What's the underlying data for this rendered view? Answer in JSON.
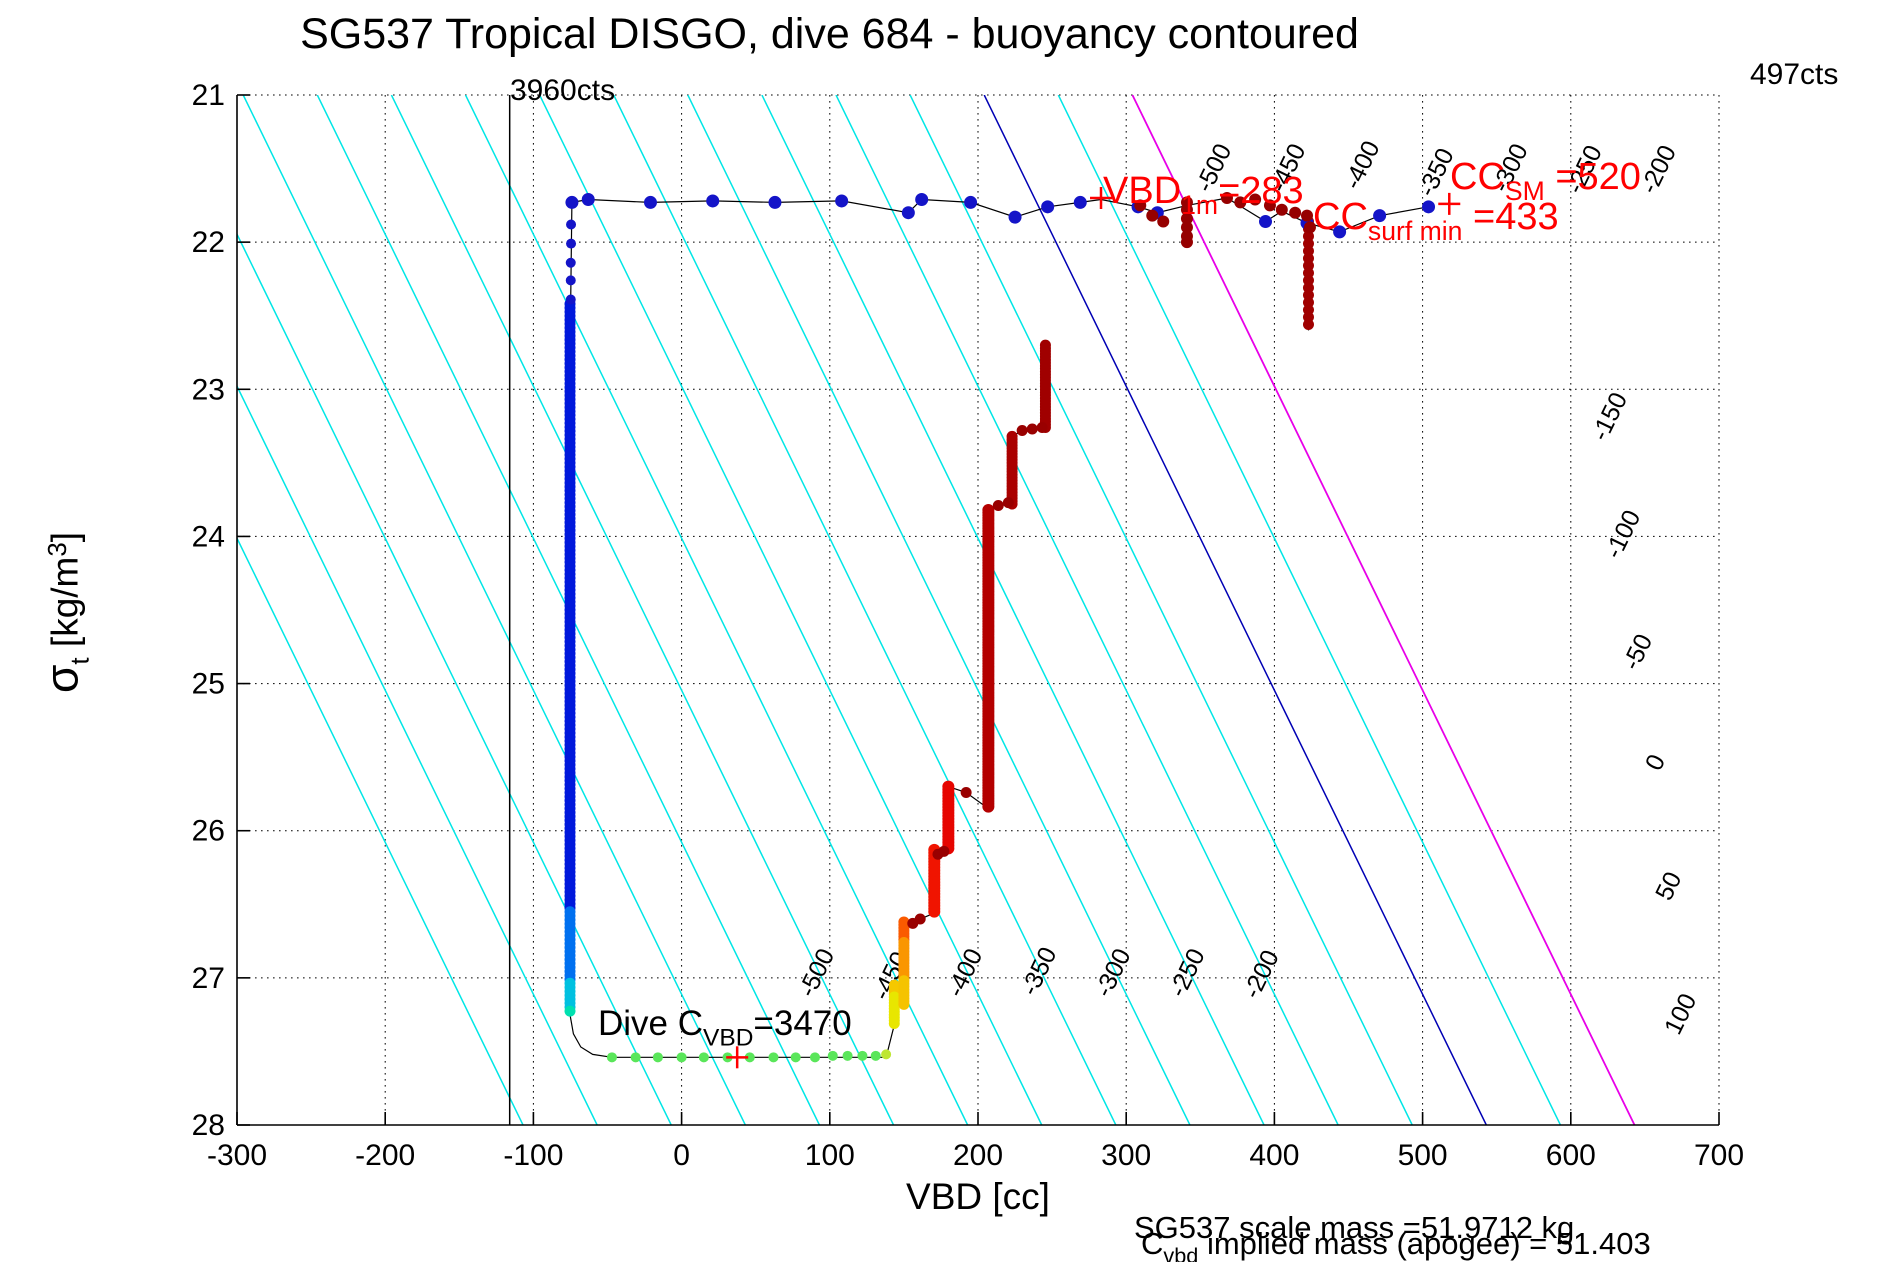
{
  "title": "SG537 Tropical DISGO, dive 684 - buoyancy contoured",
  "annotations": {
    "counts_left": "3960cts",
    "counts_right": "497cts",
    "vbd_1m": {
      "pre": "VBD",
      "sub": "1m",
      "post": "=283"
    },
    "cc_surf": {
      "pre": "CC",
      "sub": "surf min",
      "post": "=433"
    },
    "cc_sm": {
      "pre": "CC",
      "sub": "SM",
      "post": "=520"
    },
    "dive_c": {
      "pre": "Dive C",
      "sub": "VBD",
      "post": "=3470"
    },
    "scale_mass": "SG537 scale mass =51.9712 kg",
    "implied_mass": {
      "pre": "C",
      "sub": "vbd",
      "post": " implied mass (apogee) = 51.403"
    }
  },
  "axes": {
    "x": {
      "label": "VBD [cc]",
      "min": -300,
      "max": 700,
      "ticks": [
        -300,
        -200,
        -100,
        0,
        100,
        200,
        300,
        400,
        500,
        600,
        700
      ],
      "grid_ticks": [
        -200,
        -100,
        0,
        100,
        200,
        300,
        400,
        500,
        600,
        700
      ]
    },
    "y": {
      "sigma": "σ",
      "sigma_sub": "t",
      "units_pre": " [kg/m",
      "units_sup": "3",
      "units_post": "]",
      "min": 21,
      "max": 28,
      "ticks": [
        21,
        22,
        23,
        24,
        25,
        26,
        27,
        28
      ],
      "grid_ticks": [
        21,
        22,
        23,
        24,
        25,
        26,
        27
      ]
    }
  },
  "chart_data": {
    "type": "scatter",
    "xlabel": "VBD [cc]",
    "ylabel": "sigma_t [kg/m3]",
    "xlim": [
      -300,
      700
    ],
    "ylim": [
      21,
      28
    ],
    "y_inverted": true,
    "grid": true,
    "reference_line_vbd": -116,
    "contours": {
      "comment": "buoyancy contour value v satisfies v = vbd - 543 + 48.4*(28-sigma)",
      "vbd_offset_at_sigma28": 543,
      "dvbd_dsigma": -48.4,
      "step": 50,
      "levels": [
        -650,
        -600,
        -550,
        -500,
        -450,
        -400,
        -350,
        -300,
        -250,
        -200,
        -150,
        -100,
        -50,
        0,
        50,
        100
      ],
      "default_color": "#00e6e6",
      "special_colors": {
        "0": "#0000b4",
        "100": "#e800e8"
      },
      "label_rotation_deg": -64,
      "labels": [
        {
          "v": -500,
          "vbd": 364,
          "sigma": 21.52
        },
        {
          "v": -450,
          "vbd": 414,
          "sigma": 21.52
        },
        {
          "v": -400,
          "vbd": 464,
          "sigma": 21.5
        },
        {
          "v": -350,
          "vbd": 514,
          "sigma": 21.55
        },
        {
          "v": -300,
          "vbd": 564,
          "sigma": 21.52
        },
        {
          "v": -250,
          "vbd": 614,
          "sigma": 21.53
        },
        {
          "v": -200,
          "vbd": 664,
          "sigma": 21.53
        },
        {
          "v": -150,
          "vbd": 631,
          "sigma": 23.21
        },
        {
          "v": -100,
          "vbd": 640,
          "sigma": 24.01
        },
        {
          "v": -50,
          "vbd": 650,
          "sigma": 24.81
        },
        {
          "v": 0,
          "vbd": 662,
          "sigma": 25.56
        },
        {
          "v": 50,
          "vbd": 671,
          "sigma": 26.4
        },
        {
          "v": 100,
          "vbd": 679,
          "sigma": 27.27
        },
        {
          "v": -500,
          "vbd": 96,
          "sigma": 26.99
        },
        {
          "v": -450,
          "vbd": 146,
          "sigma": 27.01
        },
        {
          "v": -400,
          "vbd": 196,
          "sigma": 26.99
        },
        {
          "v": -350,
          "vbd": 246,
          "sigma": 26.98
        },
        {
          "v": -300,
          "vbd": 296,
          "sigma": 26.99
        },
        {
          "v": -250,
          "vbd": 346,
          "sigma": 26.99
        },
        {
          "v": -200,
          "vbd": 396,
          "sigma": 27.0
        }
      ]
    },
    "black_paths": [
      [
        [
          -74,
          21.73
        ],
        [
          -63,
          21.71
        ],
        [
          -21,
          21.73
        ],
        [
          21,
          21.72
        ],
        [
          63,
          21.73
        ],
        [
          108,
          21.72
        ],
        [
          153,
          21.8
        ],
        [
          162,
          21.71
        ],
        [
          195,
          21.73
        ],
        [
          225,
          21.83
        ],
        [
          247,
          21.76
        ],
        [
          269,
          21.73
        ],
        [
          283,
          21.71
        ],
        [
          308,
          21.76
        ],
        [
          321,
          21.8
        ],
        [
          341,
          21.75
        ],
        [
          368,
          21.7
        ],
        [
          394,
          21.86
        ],
        [
          405,
          21.79
        ],
        [
          422,
          21.87
        ],
        [
          444,
          21.93
        ],
        [
          471,
          21.82
        ],
        [
          504,
          21.76
        ]
      ],
      [
        [
          -74,
          21.73
        ],
        [
          -74.8,
          22.4
        ],
        [
          -75.3,
          26.0
        ],
        [
          -75.3,
          27.25
        ],
        [
          -73,
          27.38
        ],
        [
          -68,
          27.47
        ],
        [
          -60,
          27.52
        ],
        [
          -47,
          27.54
        ],
        [
          138,
          27.54
        ]
      ],
      [
        [
          138,
          27.54
        ],
        [
          143.5,
          27.32
        ],
        [
          143.5,
          27.05
        ],
        [
          150,
          27.18
        ],
        [
          150,
          26.62
        ],
        [
          161,
          26.6
        ],
        [
          170.5,
          26.56
        ],
        [
          170.5,
          26.13
        ],
        [
          180,
          26.13
        ],
        [
          180,
          25.7
        ],
        [
          192,
          25.74
        ],
        [
          207,
          25.85
        ],
        [
          207,
          23.82
        ],
        [
          213.7,
          23.79
        ],
        [
          223,
          23.78
        ],
        [
          223,
          23.32
        ],
        [
          229.8,
          23.28
        ],
        [
          243.3,
          23.26
        ],
        [
          245.5,
          23.27
        ],
        [
          245.5,
          22.7
        ]
      ],
      [
        [
          423,
          21.86
        ],
        [
          423,
          22.6
        ]
      ]
    ],
    "strands": [
      {
        "x": -75.3,
        "s0": 22.42,
        "s1": 27.25,
        "step": 0.027,
        "size": 11,
        "stops": [
          [
            26.55,
            "#0018dc"
          ],
          [
            27.02,
            "#0070f0"
          ],
          [
            27.22,
            "#00c0e0"
          ],
          [
            99,
            "#00e0b0"
          ]
        ]
      },
      {
        "x": 143.5,
        "s0": 27.05,
        "s1": 27.32,
        "step": 0.02,
        "size": 11,
        "stops": [
          [
            27.12,
            "#f5c800"
          ],
          [
            99,
            "#e8e600"
          ]
        ]
      },
      {
        "x": 150,
        "s0": 26.62,
        "s1": 27.18,
        "step": 0.02,
        "size": 11,
        "stops": [
          [
            26.75,
            "#fa5a00"
          ],
          [
            27.0,
            "#fa9600"
          ],
          [
            99,
            "#f5c300"
          ]
        ]
      },
      {
        "x": 170.5,
        "s0": 26.13,
        "s1": 26.56,
        "step": 0.02,
        "size": 12,
        "stops": [
          [
            99,
            "#f01400"
          ]
        ]
      },
      {
        "x": 180,
        "s0": 25.7,
        "s1": 26.13,
        "step": 0.02,
        "size": 12,
        "stops": [
          [
            99,
            "#e60500"
          ]
        ]
      },
      {
        "x": 207,
        "s0": 23.82,
        "s1": 25.85,
        "step": 0.018,
        "size": 12,
        "stops": [
          [
            99,
            "#b40000"
          ]
        ]
      },
      {
        "x": 223,
        "s0": 23.32,
        "s1": 23.78,
        "step": 0.02,
        "size": 11,
        "stops": [
          [
            99,
            "#aa0000"
          ]
        ]
      },
      {
        "x": 245.5,
        "s0": 22.7,
        "s1": 23.27,
        "step": 0.02,
        "size": 11,
        "stops": [
          [
            99,
            "#a00000"
          ]
        ]
      },
      {
        "x": 423,
        "s0": 21.86,
        "s1": 22.6,
        "step": 0.05,
        "size": 11,
        "stops": [
          [
            99,
            "#a00000"
          ]
        ]
      }
    ],
    "series": [
      {
        "name": "surface-points",
        "color": "#1414c8",
        "size": 13,
        "points": [
          [
            -74,
            21.73
          ],
          [
            -63,
            21.71
          ],
          [
            -21,
            21.73
          ],
          [
            21,
            21.72
          ],
          [
            63,
            21.73
          ],
          [
            108,
            21.72
          ],
          [
            153,
            21.8
          ],
          [
            162,
            21.71
          ],
          [
            195,
            21.73
          ],
          [
            225,
            21.83
          ],
          [
            247,
            21.76
          ],
          [
            269,
            21.73
          ],
          [
            308,
            21.76
          ],
          [
            321,
            21.8
          ],
          [
            394,
            21.86
          ],
          [
            422,
            21.87
          ],
          [
            444,
            21.93
          ],
          [
            471,
            21.82
          ],
          [
            504,
            21.76
          ]
        ]
      },
      {
        "name": "descent-sparse",
        "color": "#1414c8",
        "size": 10,
        "points": [
          [
            -74.6,
            21.88
          ],
          [
            -74.6,
            22.01
          ],
          [
            -74.8,
            22.14
          ],
          [
            -74.8,
            22.26
          ],
          [
            -74.8,
            22.39
          ]
        ]
      },
      {
        "name": "bottom-green",
        "color": "#5ae65a",
        "size": 10,
        "points": [
          [
            -47,
            27.54
          ],
          [
            -31,
            27.54
          ],
          [
            -16,
            27.54
          ],
          [
            0,
            27.54
          ],
          [
            15,
            27.54
          ],
          [
            31,
            27.54
          ],
          [
            46,
            27.54
          ],
          [
            62,
            27.54
          ],
          [
            77,
            27.54
          ],
          [
            90,
            27.54
          ],
          [
            102,
            27.53
          ],
          [
            112,
            27.53
          ],
          [
            122,
            27.53
          ],
          [
            131,
            27.53
          ]
        ]
      },
      {
        "name": "bottom-tail",
        "color": "#bee632",
        "size": 10,
        "points": [
          [
            138,
            27.52
          ]
        ]
      },
      {
        "name": "climb-extra",
        "color": "#990000",
        "size": 11,
        "points": [
          [
            161,
            26.6
          ],
          [
            156,
            26.63
          ],
          [
            173,
            26.16
          ],
          [
            177,
            26.14
          ],
          [
            192,
            25.74
          ],
          [
            213.7,
            23.79
          ],
          [
            220.5,
            23.77
          ],
          [
            229.8,
            23.28
          ],
          [
            236.6,
            23.27
          ],
          [
            243.3,
            23.26
          ]
        ]
      },
      {
        "name": "surface-cluster-darkred",
        "color": "#960000",
        "size": 12,
        "points": [
          [
            309.5,
            21.75
          ],
          [
            317.6,
            21.82
          ],
          [
            325,
            21.86
          ],
          [
            341,
            21.73
          ],
          [
            341,
            21.78
          ],
          [
            341,
            21.84
          ],
          [
            341,
            21.9
          ],
          [
            341,
            21.96
          ],
          [
            341,
            22.0
          ],
          [
            368,
            21.7
          ],
          [
            377,
            21.73
          ],
          [
            387,
            21.71
          ],
          [
            397,
            21.75
          ],
          [
            405,
            21.78
          ],
          [
            414,
            21.8
          ],
          [
            422,
            21.82
          ],
          [
            424,
            21.9
          ]
        ]
      }
    ],
    "plus_markers": {
      "color": "#ff0000",
      "half": 11,
      "points": [
        [
          283,
          21.7
        ],
        [
          518,
          21.74
        ],
        [
          37.5,
          27.54
        ]
      ]
    }
  }
}
